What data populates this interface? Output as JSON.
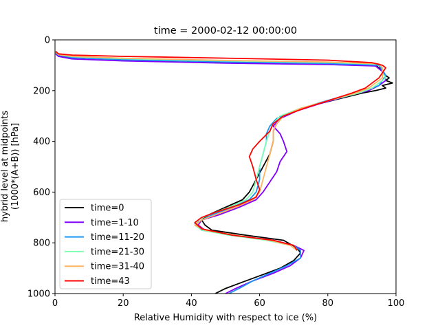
{
  "chart_data": {
    "type": "line",
    "title": "time = 2000-02-12 00:00:00",
    "xlabel": "Relative Humidity with respect to ice (%)",
    "ylabel_lines": [
      "hybrid level at midpoints",
      "(1000*(A+B)) [hPa]"
    ],
    "xlim": [
      0,
      100
    ],
    "ylim": [
      1000,
      0
    ],
    "y_inverted": true,
    "grid": false,
    "legend_position": "lower-left",
    "xticks": [
      0,
      20,
      40,
      60,
      80,
      100
    ],
    "yticks": [
      0,
      200,
      400,
      600,
      800,
      1000
    ],
    "series": [
      {
        "name": "time=0",
        "color": "#000000",
        "points": [
          [
            0.2,
            50
          ],
          [
            1,
            62
          ],
          [
            5,
            70
          ],
          [
            20,
            78
          ],
          [
            50,
            88
          ],
          [
            80,
            95
          ],
          [
            94,
            100
          ],
          [
            96,
            120
          ],
          [
            97,
            140
          ],
          [
            98,
            150
          ],
          [
            97,
            160
          ],
          [
            99,
            170
          ],
          [
            96,
            180
          ],
          [
            97,
            190
          ],
          [
            94,
            200
          ],
          [
            90,
            210
          ],
          [
            84,
            230
          ],
          [
            78,
            250
          ],
          [
            72,
            270
          ],
          [
            67,
            300
          ],
          [
            65,
            330
          ],
          [
            64,
            360
          ],
          [
            64,
            400
          ],
          [
            63,
            450
          ],
          [
            61,
            500
          ],
          [
            59,
            550
          ],
          [
            57,
            600
          ],
          [
            55,
            630
          ],
          [
            50,
            660
          ],
          [
            45,
            690
          ],
          [
            43,
            710
          ],
          [
            44,
            730
          ],
          [
            46,
            750
          ],
          [
            56,
            770
          ],
          [
            67,
            790
          ],
          [
            71,
            820
          ],
          [
            72,
            840
          ],
          [
            70,
            870
          ],
          [
            66,
            900
          ],
          [
            60,
            930
          ],
          [
            54,
            960
          ],
          [
            50,
            980
          ],
          [
            47,
            1000
          ]
        ]
      },
      {
        "name": "time=1-10",
        "color": "#7f00ff",
        "points": [
          [
            0.2,
            55
          ],
          [
            1,
            65
          ],
          [
            5,
            75
          ],
          [
            20,
            83
          ],
          [
            50,
            92
          ],
          [
            80,
            97
          ],
          [
            94,
            103
          ],
          [
            96,
            125
          ],
          [
            97,
            140
          ],
          [
            97,
            160
          ],
          [
            95,
            180
          ],
          [
            92,
            200
          ],
          [
            86,
            220
          ],
          [
            78,
            250
          ],
          [
            71,
            280
          ],
          [
            66,
            310
          ],
          [
            64,
            340
          ],
          [
            66,
            370
          ],
          [
            67,
            400
          ],
          [
            68,
            440
          ],
          [
            66,
            480
          ],
          [
            65,
            520
          ],
          [
            63,
            560
          ],
          [
            61,
            600
          ],
          [
            59,
            630
          ],
          [
            54,
            660
          ],
          [
            48,
            690
          ],
          [
            43,
            710
          ],
          [
            42,
            730
          ],
          [
            44,
            750
          ],
          [
            52,
            770
          ],
          [
            64,
            790
          ],
          [
            70,
            810
          ],
          [
            73,
            830
          ],
          [
            72,
            860
          ],
          [
            69,
            890
          ],
          [
            64,
            920
          ],
          [
            58,
            950
          ],
          [
            53,
            980
          ],
          [
            50,
            1000
          ]
        ]
      },
      {
        "name": "time=11-20",
        "color": "#1996f3",
        "points": [
          [
            0.2,
            50
          ],
          [
            1,
            60
          ],
          [
            5,
            70
          ],
          [
            20,
            78
          ],
          [
            50,
            87
          ],
          [
            80,
            93
          ],
          [
            95,
            100
          ],
          [
            96,
            120
          ],
          [
            97,
            140
          ],
          [
            96,
            160
          ],
          [
            95,
            180
          ],
          [
            91,
            200
          ],
          [
            85,
            220
          ],
          [
            77,
            250
          ],
          [
            70,
            280
          ],
          [
            65,
            310
          ],
          [
            63,
            340
          ],
          [
            62,
            370
          ],
          [
            62,
            400
          ],
          [
            61,
            450
          ],
          [
            60,
            500
          ],
          [
            60,
            550
          ],
          [
            59,
            600
          ],
          [
            57,
            630
          ],
          [
            52,
            660
          ],
          [
            46,
            690
          ],
          [
            43,
            710
          ],
          [
            41,
            725
          ],
          [
            43,
            750
          ],
          [
            52,
            770
          ],
          [
            64,
            790
          ],
          [
            70,
            810
          ],
          [
            72,
            830
          ],
          [
            72,
            860
          ],
          [
            68,
            890
          ],
          [
            63,
            920
          ],
          [
            58,
            950
          ],
          [
            54,
            980
          ],
          [
            51,
            1000
          ]
        ]
      },
      {
        "name": "time=21-30",
        "color": "#80ffb4",
        "points": [
          [
            0.2,
            48
          ],
          [
            1,
            58
          ],
          [
            5,
            66
          ],
          [
            20,
            74
          ],
          [
            50,
            83
          ],
          [
            80,
            89
          ],
          [
            95,
            96
          ],
          [
            96,
            110
          ],
          [
            96,
            130
          ],
          [
            97,
            150
          ],
          [
            95,
            170
          ],
          [
            93,
            190
          ],
          [
            89,
            210
          ],
          [
            80,
            240
          ],
          [
            72,
            270
          ],
          [
            66,
            300
          ],
          [
            64,
            330
          ],
          [
            63,
            360
          ],
          [
            62,
            400
          ],
          [
            61,
            450
          ],
          [
            60,
            500
          ],
          [
            59,
            550
          ],
          [
            58,
            600
          ],
          [
            56,
            630
          ],
          [
            51,
            660
          ],
          [
            45,
            690
          ],
          [
            42,
            710
          ],
          [
            41,
            730
          ],
          [
            43,
            750
          ],
          [
            51,
            770
          ],
          [
            62,
            790
          ],
          [
            69,
            810
          ],
          [
            71,
            830
          ]
        ]
      },
      {
        "name": "time=31-40",
        "color": "#ffb360",
        "points": [
          [
            0.2,
            48
          ],
          [
            1,
            58
          ],
          [
            5,
            65
          ],
          [
            20,
            72
          ],
          [
            50,
            81
          ],
          [
            80,
            87
          ],
          [
            95,
            94
          ],
          [
            96,
            110
          ],
          [
            96,
            130
          ],
          [
            96,
            150
          ],
          [
            94,
            170
          ],
          [
            92,
            190
          ],
          [
            88,
            210
          ],
          [
            80,
            240
          ],
          [
            72,
            270
          ],
          [
            67,
            300
          ],
          [
            65,
            330
          ],
          [
            64,
            360
          ],
          [
            64,
            400
          ],
          [
            63,
            450
          ],
          [
            62,
            500
          ],
          [
            61,
            550
          ],
          [
            60,
            600
          ],
          [
            58,
            630
          ],
          [
            53,
            660
          ],
          [
            47,
            690
          ],
          [
            43,
            710
          ],
          [
            41,
            730
          ],
          [
            44,
            750
          ],
          [
            53,
            770
          ],
          [
            63,
            790
          ],
          [
            69,
            810
          ],
          [
            71,
            830
          ]
        ]
      },
      {
        "name": "time=43",
        "color": "#ff0000",
        "points": [
          [
            0.2,
            45
          ],
          [
            1,
            55
          ],
          [
            5,
            60
          ],
          [
            20,
            65
          ],
          [
            50,
            72
          ],
          [
            80,
            80
          ],
          [
            93,
            90
          ],
          [
            96,
            100
          ],
          [
            97,
            110
          ],
          [
            96,
            130
          ],
          [
            95,
            150
          ],
          [
            93,
            170
          ],
          [
            91,
            190
          ],
          [
            87,
            210
          ],
          [
            80,
            240
          ],
          [
            73,
            270
          ],
          [
            67,
            300
          ],
          [
            64,
            330
          ],
          [
            63,
            360
          ],
          [
            60,
            400
          ],
          [
            58,
            430
          ],
          [
            57,
            460
          ],
          [
            58,
            500
          ],
          [
            59,
            550
          ],
          [
            60,
            590
          ],
          [
            59,
            620
          ],
          [
            54,
            650
          ],
          [
            47,
            680
          ],
          [
            43,
            700
          ],
          [
            41,
            720
          ],
          [
            43,
            745
          ],
          [
            52,
            770
          ],
          [
            64,
            790
          ],
          [
            70,
            810
          ],
          [
            71,
            830
          ]
        ]
      }
    ]
  }
}
